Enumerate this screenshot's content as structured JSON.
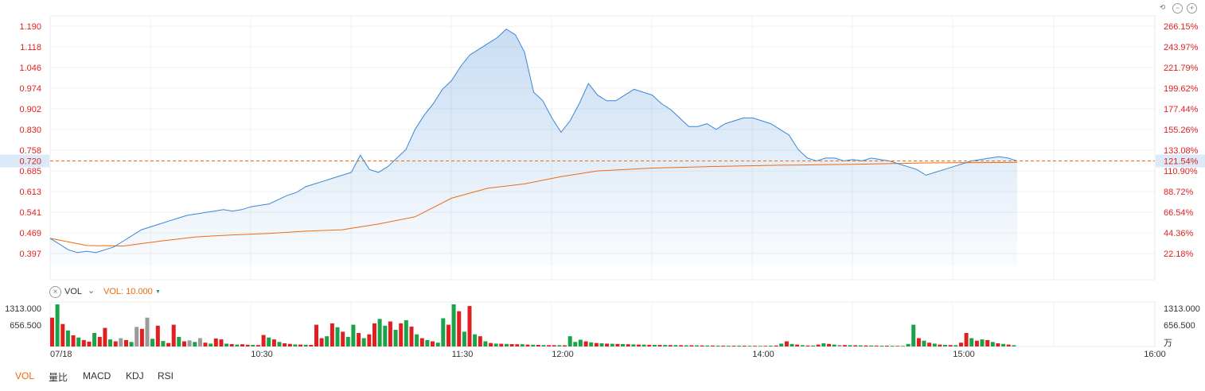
{
  "controls": {
    "undo_icon": "undo-icon",
    "zoom_out_icon": "zoom-out-icon",
    "zoom_in_icon": "zoom-in-icon"
  },
  "price_axis": {
    "ticks": [
      "1.190",
      "1.118",
      "1.046",
      "0.974",
      "0.902",
      "0.830",
      "0.758",
      "0.685",
      "0.613",
      "0.541",
      "0.469",
      "0.397"
    ],
    "tick_values": [
      1.19,
      1.118,
      1.046,
      0.974,
      0.902,
      0.83,
      0.758,
      0.685,
      0.613,
      0.541,
      0.469,
      0.397
    ],
    "current_label": "0.720",
    "current_value": 0.72
  },
  "pct_axis": {
    "ticks": [
      "266.15%",
      "243.97%",
      "221.79%",
      "199.62%",
      "177.44%",
      "155.26%",
      "133.08%",
      "110.90%",
      "88.72%",
      "66.54%",
      "44.36%",
      "22.18%"
    ],
    "current_label": "121.54%"
  },
  "volume_panel": {
    "close_icon": "close-icon",
    "label": "VOL",
    "dropdown_icon": "chevron-down-icon",
    "setting_label": "VOL: 10.000",
    "setting_caret": "▼",
    "ticks": [
      "1313.000",
      "656.500"
    ],
    "unit": "万"
  },
  "x_axis": {
    "labels": [
      "07/18",
      "10:30",
      "11:30",
      "12:00",
      "14:00",
      "15:00",
      "16:00"
    ]
  },
  "tabs": [
    {
      "label": "VOL",
      "active": true
    },
    {
      "label": "量比",
      "active": false
    },
    {
      "label": "MACD",
      "active": false
    },
    {
      "label": "KDJ",
      "active": false
    },
    {
      "label": "RSI",
      "active": false
    }
  ],
  "colors": {
    "price_line": "#3b86d6",
    "avg_line": "#f06a0f",
    "up": "#e02020",
    "down": "#1aa34a",
    "neutral": "#9a9a9a",
    "axis_text": "#e02020"
  },
  "chart_data": {
    "type": "line",
    "ylim": [
      0.35,
      1.21
    ],
    "price_points": [
      [
        0,
        0.45
      ],
      [
        1,
        0.43
      ],
      [
        2,
        0.41
      ],
      [
        3,
        0.4
      ],
      [
        4,
        0.405
      ],
      [
        5,
        0.4
      ],
      [
        6,
        0.41
      ],
      [
        7,
        0.42
      ],
      [
        8,
        0.44
      ],
      [
        9,
        0.46
      ],
      [
        10,
        0.48
      ],
      [
        11,
        0.49
      ],
      [
        12,
        0.5
      ],
      [
        13,
        0.51
      ],
      [
        14,
        0.52
      ],
      [
        15,
        0.53
      ],
      [
        16,
        0.535
      ],
      [
        17,
        0.54
      ],
      [
        18,
        0.545
      ],
      [
        19,
        0.55
      ],
      [
        20,
        0.545
      ],
      [
        21,
        0.55
      ],
      [
        22,
        0.56
      ],
      [
        23,
        0.565
      ],
      [
        24,
        0.57
      ],
      [
        25,
        0.585
      ],
      [
        26,
        0.6
      ],
      [
        27,
        0.61
      ],
      [
        28,
        0.63
      ],
      [
        29,
        0.64
      ],
      [
        30,
        0.65
      ],
      [
        31,
        0.66
      ],
      [
        32,
        0.67
      ],
      [
        33,
        0.68
      ],
      [
        34,
        0.74
      ],
      [
        35,
        0.69
      ],
      [
        36,
        0.68
      ],
      [
        37,
        0.7
      ],
      [
        38,
        0.73
      ],
      [
        39,
        0.76
      ],
      [
        40,
        0.83
      ],
      [
        41,
        0.88
      ],
      [
        42,
        0.92
      ],
      [
        43,
        0.97
      ],
      [
        44,
        1.0
      ],
      [
        45,
        1.05
      ],
      [
        46,
        1.09
      ],
      [
        47,
        1.11
      ],
      [
        48,
        1.13
      ],
      [
        49,
        1.15
      ],
      [
        50,
        1.18
      ],
      [
        51,
        1.16
      ],
      [
        52,
        1.1
      ],
      [
        53,
        0.96
      ],
      [
        54,
        0.93
      ],
      [
        55,
        0.87
      ],
      [
        56,
        0.82
      ],
      [
        57,
        0.86
      ],
      [
        58,
        0.92
      ],
      [
        59,
        0.99
      ],
      [
        60,
        0.95
      ],
      [
        61,
        0.93
      ],
      [
        62,
        0.93
      ],
      [
        63,
        0.95
      ],
      [
        64,
        0.97
      ],
      [
        65,
        0.96
      ],
      [
        66,
        0.95
      ],
      [
        67,
        0.92
      ],
      [
        68,
        0.9
      ],
      [
        69,
        0.87
      ],
      [
        70,
        0.84
      ],
      [
        71,
        0.84
      ],
      [
        72,
        0.85
      ],
      [
        73,
        0.83
      ],
      [
        74,
        0.85
      ],
      [
        75,
        0.86
      ],
      [
        76,
        0.87
      ],
      [
        77,
        0.87
      ],
      [
        78,
        0.86
      ],
      [
        79,
        0.85
      ],
      [
        80,
        0.83
      ],
      [
        81,
        0.81
      ],
      [
        82,
        0.76
      ],
      [
        83,
        0.73
      ],
      [
        84,
        0.72
      ],
      [
        85,
        0.73
      ],
      [
        86,
        0.73
      ],
      [
        87,
        0.72
      ],
      [
        88,
        0.725
      ],
      [
        89,
        0.72
      ],
      [
        90,
        0.73
      ],
      [
        91,
        0.725
      ],
      [
        92,
        0.72
      ],
      [
        93,
        0.71
      ],
      [
        94,
        0.7
      ],
      [
        95,
        0.69
      ],
      [
        96,
        0.67
      ],
      [
        97,
        0.68
      ],
      [
        98,
        0.69
      ],
      [
        99,
        0.7
      ],
      [
        100,
        0.71
      ],
      [
        101,
        0.72
      ],
      [
        102,
        0.725
      ],
      [
        103,
        0.73
      ],
      [
        104,
        0.735
      ],
      [
        105,
        0.73
      ],
      [
        106,
        0.72
      ]
    ],
    "avg_points": [
      [
        0,
        0.45
      ],
      [
        4,
        0.425
      ],
      [
        8,
        0.423
      ],
      [
        12,
        0.44
      ],
      [
        16,
        0.455
      ],
      [
        20,
        0.462
      ],
      [
        24,
        0.467
      ],
      [
        28,
        0.475
      ],
      [
        32,
        0.48
      ],
      [
        36,
        0.5
      ],
      [
        40,
        0.525
      ],
      [
        44,
        0.59
      ],
      [
        48,
        0.625
      ],
      [
        52,
        0.64
      ],
      [
        56,
        0.665
      ],
      [
        60,
        0.685
      ],
      [
        66,
        0.695
      ],
      [
        72,
        0.7
      ],
      [
        80,
        0.705
      ],
      [
        88,
        0.708
      ],
      [
        96,
        0.713
      ],
      [
        106,
        0.715
      ]
    ],
    "volume": [
      {
        "v": 900,
        "c": "up"
      },
      {
        "v": 1313,
        "c": "down"
      },
      {
        "v": 700,
        "c": "up"
      },
      {
        "v": 500,
        "c": "down"
      },
      {
        "v": 350,
        "c": "up"
      },
      {
        "v": 280,
        "c": "down"
      },
      {
        "v": 200,
        "c": "up"
      },
      {
        "v": 150,
        "c": "up"
      },
      {
        "v": 420,
        "c": "down"
      },
      {
        "v": 300,
        "c": "up"
      },
      {
        "v": 580,
        "c": "up"
      },
      {
        "v": 220,
        "c": "down"
      },
      {
        "v": 160,
        "c": "up"
      },
      {
        "v": 260,
        "c": "neutral"
      },
      {
        "v": 200,
        "c": "up"
      },
      {
        "v": 140,
        "c": "down"
      },
      {
        "v": 610,
        "c": "neutral"
      },
      {
        "v": 550,
        "c": "up"
      },
      {
        "v": 900,
        "c": "neutral"
      },
      {
        "v": 240,
        "c": "down"
      },
      {
        "v": 650,
        "c": "up"
      },
      {
        "v": 170,
        "c": "down"
      },
      {
        "v": 110,
        "c": "up"
      },
      {
        "v": 680,
        "c": "up"
      },
      {
        "v": 300,
        "c": "down"
      },
      {
        "v": 160,
        "c": "up"
      },
      {
        "v": 190,
        "c": "neutral"
      },
      {
        "v": 140,
        "c": "down"
      },
      {
        "v": 260,
        "c": "neutral"
      },
      {
        "v": 120,
        "c": "up"
      },
      {
        "v": 90,
        "c": "down"
      },
      {
        "v": 250,
        "c": "up"
      },
      {
        "v": 220,
        "c": "up"
      },
      {
        "v": 90,
        "c": "down"
      },
      {
        "v": 75,
        "c": "up"
      },
      {
        "v": 60,
        "c": "down"
      },
      {
        "v": 70,
        "c": "up"
      },
      {
        "v": 55,
        "c": "up"
      },
      {
        "v": 50,
        "c": "down"
      },
      {
        "v": 45,
        "c": "up"
      },
      {
        "v": 360,
        "c": "up"
      },
      {
        "v": 280,
        "c": "down"
      },
      {
        "v": 220,
        "c": "up"
      },
      {
        "v": 140,
        "c": "down"
      },
      {
        "v": 100,
        "c": "up"
      },
      {
        "v": 80,
        "c": "up"
      },
      {
        "v": 65,
        "c": "down"
      },
      {
        "v": 60,
        "c": "up"
      },
      {
        "v": 55,
        "c": "down"
      },
      {
        "v": 50,
        "c": "up"
      },
      {
        "v": 680,
        "c": "up"
      },
      {
        "v": 260,
        "c": "up"
      },
      {
        "v": 320,
        "c": "down"
      },
      {
        "v": 720,
        "c": "up"
      },
      {
        "v": 600,
        "c": "down"
      },
      {
        "v": 460,
        "c": "up"
      },
      {
        "v": 300,
        "c": "down"
      },
      {
        "v": 680,
        "c": "down"
      },
      {
        "v": 420,
        "c": "up"
      },
      {
        "v": 260,
        "c": "down"
      },
      {
        "v": 380,
        "c": "up"
      },
      {
        "v": 720,
        "c": "up"
      },
      {
        "v": 860,
        "c": "down"
      },
      {
        "v": 650,
        "c": "down"
      },
      {
        "v": 780,
        "c": "up"
      },
      {
        "v": 520,
        "c": "down"
      },
      {
        "v": 720,
        "c": "up"
      },
      {
        "v": 820,
        "c": "down"
      },
      {
        "v": 620,
        "c": "up"
      },
      {
        "v": 380,
        "c": "down"
      },
      {
        "v": 260,
        "c": "up"
      },
      {
        "v": 200,
        "c": "down"
      },
      {
        "v": 160,
        "c": "up"
      },
      {
        "v": 120,
        "c": "down"
      },
      {
        "v": 880,
        "c": "down"
      },
      {
        "v": 680,
        "c": "up"
      },
      {
        "v": 1313,
        "c": "down"
      },
      {
        "v": 1100,
        "c": "up"
      },
      {
        "v": 460,
        "c": "down"
      },
      {
        "v": 1260,
        "c": "up"
      },
      {
        "v": 380,
        "c": "down"
      },
      {
        "v": 320,
        "c": "up"
      },
      {
        "v": 160,
        "c": "down"
      },
      {
        "v": 110,
        "c": "up"
      },
      {
        "v": 90,
        "c": "down"
      },
      {
        "v": 85,
        "c": "up"
      },
      {
        "v": 80,
        "c": "down"
      },
      {
        "v": 75,
        "c": "up"
      },
      {
        "v": 70,
        "c": "up"
      },
      {
        "v": 70,
        "c": "down"
      },
      {
        "v": 60,
        "c": "up"
      },
      {
        "v": 55,
        "c": "down"
      },
      {
        "v": 50,
        "c": "up"
      },
      {
        "v": 45,
        "c": "down"
      },
      {
        "v": 42,
        "c": "up"
      },
      {
        "v": 40,
        "c": "up"
      },
      {
        "v": 40,
        "c": "down"
      },
      {
        "v": 38,
        "c": "up"
      },
      {
        "v": 320,
        "c": "down"
      },
      {
        "v": 140,
        "c": "down"
      },
      {
        "v": 210,
        "c": "down"
      },
      {
        "v": 160,
        "c": "up"
      },
      {
        "v": 130,
        "c": "down"
      },
      {
        "v": 110,
        "c": "up"
      },
      {
        "v": 100,
        "c": "down"
      },
      {
        "v": 90,
        "c": "up"
      },
      {
        "v": 85,
        "c": "down"
      },
      {
        "v": 80,
        "c": "up"
      },
      {
        "v": 75,
        "c": "down"
      },
      {
        "v": 70,
        "c": "up"
      },
      {
        "v": 65,
        "c": "down"
      },
      {
        "v": 60,
        "c": "up"
      },
      {
        "v": 56,
        "c": "down"
      },
      {
        "v": 52,
        "c": "up"
      },
      {
        "v": 50,
        "c": "down"
      },
      {
        "v": 48,
        "c": "up"
      },
      {
        "v": 46,
        "c": "down"
      },
      {
        "v": 44,
        "c": "up"
      },
      {
        "v": 42,
        "c": "down"
      },
      {
        "v": 40,
        "c": "up"
      },
      {
        "v": 38,
        "c": "down"
      },
      {
        "v": 36,
        "c": "up"
      },
      {
        "v": 34,
        "c": "down"
      },
      {
        "v": 32,
        "c": "up"
      },
      {
        "v": 30,
        "c": "down"
      },
      {
        "v": 30,
        "c": "up"
      },
      {
        "v": 28,
        "c": "down"
      },
      {
        "v": 28,
        "c": "up"
      },
      {
        "v": 26,
        "c": "down"
      },
      {
        "v": 26,
        "c": "up"
      },
      {
        "v": 24,
        "c": "down"
      },
      {
        "v": 24,
        "c": "up"
      },
      {
        "v": 22,
        "c": "down"
      },
      {
        "v": 22,
        "c": "up"
      },
      {
        "v": 20,
        "c": "down"
      },
      {
        "v": 20,
        "c": "up"
      },
      {
        "v": 25,
        "c": "down"
      },
      {
        "v": 30,
        "c": "up"
      },
      {
        "v": 90,
        "c": "down"
      },
      {
        "v": 160,
        "c": "up"
      },
      {
        "v": 80,
        "c": "down"
      },
      {
        "v": 60,
        "c": "up"
      },
      {
        "v": 40,
        "c": "down"
      },
      {
        "v": 30,
        "c": "up"
      },
      {
        "v": 30,
        "c": "down"
      },
      {
        "v": 60,
        "c": "up"
      },
      {
        "v": 100,
        "c": "down"
      },
      {
        "v": 80,
        "c": "up"
      },
      {
        "v": 60,
        "c": "down"
      },
      {
        "v": 50,
        "c": "neutral"
      },
      {
        "v": 45,
        "c": "up"
      },
      {
        "v": 40,
        "c": "down"
      },
      {
        "v": 38,
        "c": "up"
      },
      {
        "v": 35,
        "c": "down"
      },
      {
        "v": 32,
        "c": "up"
      },
      {
        "v": 30,
        "c": "down"
      },
      {
        "v": 28,
        "c": "up"
      },
      {
        "v": 26,
        "c": "down"
      },
      {
        "v": 24,
        "c": "up"
      },
      {
        "v": 22,
        "c": "down"
      },
      {
        "v": 20,
        "c": "up"
      },
      {
        "v": 20,
        "c": "down"
      },
      {
        "v": 80,
        "c": "down"
      },
      {
        "v": 680,
        "c": "down"
      },
      {
        "v": 260,
        "c": "up"
      },
      {
        "v": 180,
        "c": "down"
      },
      {
        "v": 120,
        "c": "up"
      },
      {
        "v": 90,
        "c": "down"
      },
      {
        "v": 60,
        "c": "up"
      },
      {
        "v": 50,
        "c": "down"
      },
      {
        "v": 45,
        "c": "up"
      },
      {
        "v": 40,
        "c": "down"
      },
      {
        "v": 120,
        "c": "up"
      },
      {
        "v": 420,
        "c": "up"
      },
      {
        "v": 260,
        "c": "down"
      },
      {
        "v": 180,
        "c": "up"
      },
      {
        "v": 220,
        "c": "down"
      },
      {
        "v": 200,
        "c": "up"
      },
      {
        "v": 140,
        "c": "down"
      },
      {
        "v": 100,
        "c": "up"
      },
      {
        "v": 80,
        "c": "down"
      },
      {
        "v": 60,
        "c": "up"
      },
      {
        "v": 40,
        "c": "down"
      }
    ],
    "volume_ylim": [
      0,
      1313
    ]
  }
}
